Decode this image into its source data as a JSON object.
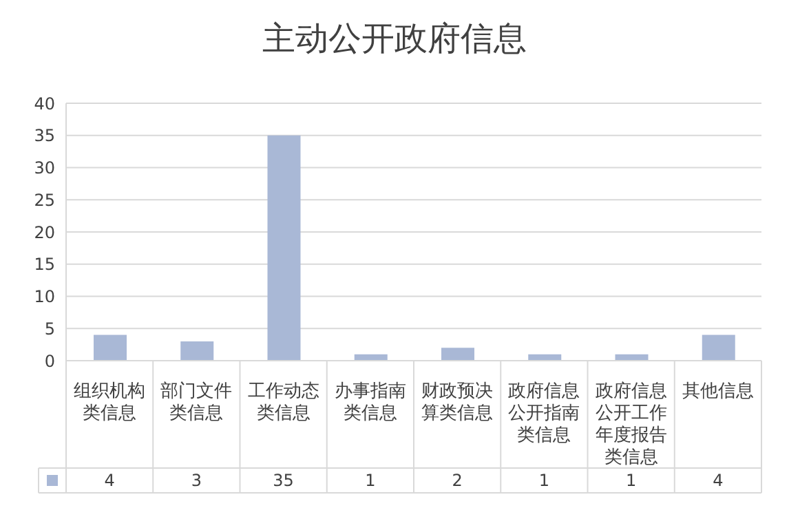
{
  "chart_data": {
    "type": "bar",
    "title": "主动公开政府信息",
    "categories": [
      "组织机构类信息",
      "部门文件类信息",
      "工作动态类信息",
      "办事指南类信息",
      "财政预决算类信息",
      "政府信息公开指南类信息",
      "政府信息公开工作年度报告类信息",
      "其他信息"
    ],
    "values": [
      4,
      3,
      35,
      1,
      2,
      1,
      1,
      4
    ],
    "color": "#a9b8d6",
    "ylim": [
      0,
      40
    ],
    "yticks": [
      0,
      5,
      10,
      15,
      20,
      25,
      30,
      35,
      40
    ],
    "grid": "y",
    "data_labels": true
  }
}
